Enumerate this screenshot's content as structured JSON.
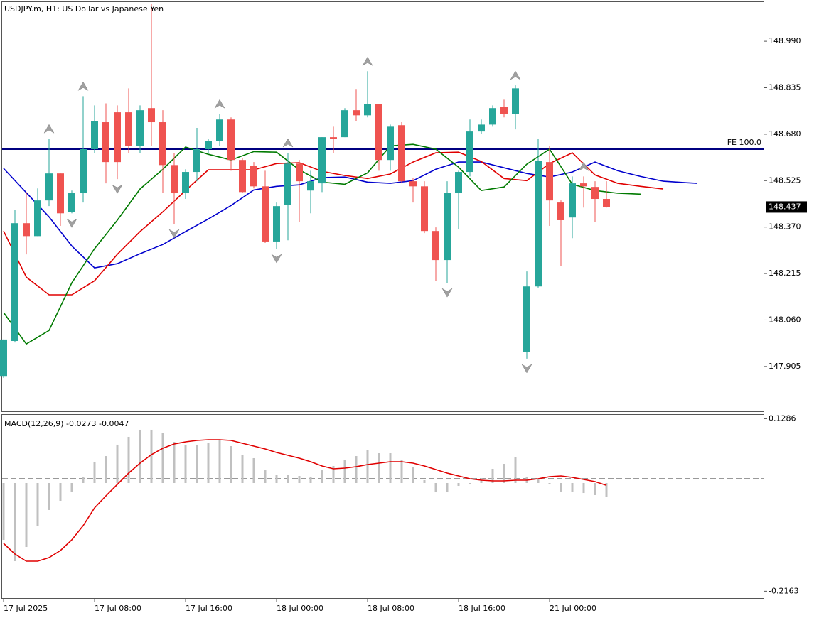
{
  "chart_data": [
    {
      "type": "candlestick",
      "title": "USDJPY.m, H1:  US Dollar vs Japanese Yen",
      "open": [
        147.871,
        147.99,
        148.383,
        148.34,
        148.459,
        148.549,
        148.421,
        148.483,
        148.63,
        148.72,
        148.753,
        148.753,
        148.641,
        148.767,
        148.72,
        148.577,
        148.483,
        148.554,
        148.63,
        148.658,
        148.729,
        148.594,
        148.575,
        148.506,
        148.322,
        148.445,
        148.582,
        148.492,
        148.516,
        148.67,
        148.67,
        148.76,
        148.743,
        148.781,
        148.594,
        148.71,
        148.523,
        148.506,
        148.357,
        148.26,
        148.483,
        148.554,
        148.689,
        148.712,
        148.772,
        148.748,
        147.954,
        148.172,
        148.587,
        148.452,
        148.402,
        148.516,
        148.504,
        148.464
      ],
      "high": [
        147.995,
        148.428,
        148.487,
        148.499,
        148.665,
        148.549,
        148.492,
        148.807,
        148.776,
        148.783,
        148.776,
        148.833,
        148.776,
        149.115,
        148.76,
        148.618,
        148.563,
        148.701,
        148.665,
        148.748,
        148.736,
        148.601,
        148.587,
        148.558,
        148.452,
        148.618,
        148.594,
        148.558,
        148.67,
        148.705,
        148.767,
        148.831,
        148.89,
        148.781,
        148.712,
        148.72,
        148.535,
        148.523,
        148.369,
        148.523,
        148.558,
        148.729,
        148.729,
        148.776,
        148.795,
        148.843,
        148.222,
        148.665,
        148.641,
        148.459,
        148.539,
        148.539,
        148.523,
        148.523
      ],
      "low": [
        147.867,
        147.985,
        148.279,
        148.34,
        148.44,
        148.374,
        148.416,
        148.452,
        148.618,
        148.516,
        148.53,
        148.618,
        148.618,
        148.641,
        148.483,
        148.381,
        148.464,
        148.523,
        148.618,
        148.641,
        148.558,
        148.483,
        148.499,
        148.317,
        148.298,
        148.326,
        148.388,
        148.416,
        148.487,
        148.618,
        148.67,
        148.724,
        148.736,
        148.558,
        148.558,
        148.516,
        148.452,
        148.35,
        148.191,
        148.184,
        148.364,
        148.539,
        148.682,
        148.705,
        148.736,
        148.696,
        147.931,
        148.168,
        148.374,
        148.239,
        148.333,
        148.435,
        148.388,
        148.435
      ],
      "close": [
        147.995,
        148.383,
        148.34,
        148.459,
        148.549,
        148.416,
        148.483,
        148.63,
        148.724,
        148.587,
        148.587,
        148.641,
        148.76,
        148.72,
        148.577,
        148.483,
        148.554,
        148.63,
        148.658,
        148.729,
        148.594,
        148.487,
        148.506,
        148.322,
        148.44,
        148.582,
        148.523,
        148.523,
        148.67,
        148.665,
        148.76,
        148.743,
        148.781,
        148.594,
        148.705,
        148.523,
        148.506,
        148.357,
        148.26,
        148.483,
        148.554,
        148.689,
        148.712,
        148.767,
        148.748,
        148.833,
        148.172,
        148.592,
        148.459,
        148.393,
        148.516,
        148.506,
        148.464,
        148.437
      ],
      "up_color": "#26a69a",
      "down_color": "#ef5350",
      "series": [
        {
          "color": "#0000cd",
          "x": [
            0,
            2,
            4,
            6,
            8,
            10,
            12,
            14,
            16,
            18,
            20,
            22,
            24,
            26,
            28,
            30,
            32,
            34,
            36,
            38,
            40,
            42,
            44,
            46,
            48,
            50,
            52,
            54,
            56,
            58,
            60,
            61
          ],
          "values": [
            148.566,
            148.485,
            148.404,
            148.307,
            148.234,
            148.248,
            148.281,
            148.312,
            148.355,
            148.397,
            148.442,
            148.494,
            148.506,
            148.511,
            148.535,
            148.537,
            148.52,
            148.516,
            148.525,
            148.563,
            148.587,
            148.587,
            148.568,
            148.549,
            148.537,
            148.554,
            148.587,
            148.558,
            148.539,
            148.523,
            148.518,
            148.516
          ]
        },
        {
          "color": "#e00000",
          "x": [
            0,
            2,
            4,
            6,
            8,
            10,
            12,
            14,
            16,
            18,
            20,
            22,
            24,
            26,
            28,
            30,
            32,
            34,
            36,
            38,
            40,
            42,
            44,
            46,
            48,
            50,
            52,
            54,
            56,
            58
          ],
          "values": [
            148.357,
            148.203,
            148.144,
            148.144,
            148.191,
            148.279,
            148.355,
            148.421,
            148.492,
            148.561,
            148.561,
            148.561,
            148.582,
            148.585,
            148.556,
            148.542,
            148.532,
            148.547,
            148.587,
            148.618,
            148.62,
            148.589,
            148.532,
            148.525,
            148.582,
            148.618,
            148.544,
            148.516,
            148.506,
            148.497
          ]
        },
        {
          "color": "#007a00",
          "x": [
            0,
            2,
            4,
            6,
            8,
            10,
            12,
            14,
            16,
            18,
            20,
            22,
            24,
            26,
            28,
            30,
            32,
            34,
            36,
            38,
            40,
            42,
            44,
            46,
            48,
            50,
            52,
            54,
            56
          ],
          "values": [
            148.085,
            147.98,
            148.025,
            148.184,
            148.298,
            148.393,
            148.497,
            148.563,
            148.637,
            148.613,
            148.594,
            148.622,
            148.62,
            148.561,
            148.52,
            148.513,
            148.551,
            148.641,
            148.646,
            148.63,
            148.57,
            148.492,
            148.504,
            148.58,
            148.63,
            148.513,
            148.492,
            148.483,
            148.48
          ]
        }
      ],
      "fractals_up": [
        4,
        7,
        19,
        25,
        32,
        45,
        51
      ],
      "fractals_down": [
        6,
        10,
        15,
        24,
        39,
        46
      ],
      "fractal_color": "#a0a0a0",
      "hline": {
        "value": 148.63,
        "label": "FE 100.0",
        "color": "#000080"
      },
      "xlim": [
        -0.1875,
        66.875
      ],
      "ylim": [
        147.753,
        149.123
      ],
      "yticks": [
        {
          "value": 148.99,
          "label": "148.990"
        },
        148.835,
        {
          "value": 148.68,
          "label": "148.680"
        },
        148.525,
        {
          "value": 148.37,
          "label": "148.370"
        },
        148.215,
        {
          "value": 148.06,
          "label": "148.060"
        },
        147.905
      ]
    },
    {
      "type": "macd",
      "name": "MACD(12,26,9)",
      "histogram": [
        -0.1136,
        -0.1561,
        -0.1278,
        -0.0852,
        -0.0539,
        -0.0355,
        -0.017,
        0.0114,
        0.0426,
        0.0539,
        0.0767,
        0.0923,
        0.1065,
        0.1065,
        0.0994,
        0.0823,
        0.0767,
        0.0767,
        0.0795,
        0.0852,
        0.0738,
        0.0568,
        0.0497,
        0.0255,
        0.017,
        0.017,
        0.0142,
        0.0128,
        0.0255,
        0.0341,
        0.0454,
        0.0539,
        0.0653,
        0.0596,
        0.0596,
        0.0454,
        0.0312,
        0.0057,
        -0.0185,
        -0.0185,
        -0.0057,
        -0.0014,
        0.0099,
        0.0284,
        0.0383,
        0.0525,
        0.0114,
        0.0085,
        -0.0028,
        -0.017,
        -0.017,
        -0.0199,
        -0.0241,
        -0.0273
      ],
      "signal": [
        -0.1207,
        -0.1419,
        -0.1561,
        -0.1561,
        -0.149,
        -0.1348,
        -0.1136,
        -0.0852,
        -0.0497,
        -0.0256,
        -0.0028,
        0.0199,
        0.0397,
        0.0568,
        0.0696,
        0.0781,
        0.0823,
        0.0852,
        0.0866,
        0.0866,
        0.0852,
        0.0795,
        0.0738,
        0.0681,
        0.061,
        0.0554,
        0.0497,
        0.0426,
        0.0341,
        0.0284,
        0.0298,
        0.0326,
        0.0369,
        0.0397,
        0.0426,
        0.0426,
        0.0397,
        0.0341,
        0.027,
        0.0199,
        0.0142,
        0.0085,
        0.0057,
        0.0043,
        0.0043,
        0.0057,
        0.0057,
        0.0085,
        0.0128,
        0.0142,
        0.0114,
        0.0071,
        0.0028,
        -0.0047
      ],
      "histogram_color": "#c0c0c0",
      "signal_color": "#e00000",
      "xlim": [
        -0.1875,
        66.875
      ],
      "ylim": [
        -0.2314,
        0.1377
      ],
      "yticks": [
        0.1286,
        -0.2163
      ],
      "xticks": [
        {
          "value": 0,
          "label": "17 Jul 2025"
        },
        {
          "value": 8,
          "label": "17 Jul 08:00"
        },
        {
          "value": 16,
          "label": "17 Jul 16:00"
        },
        {
          "value": 24,
          "label": "18 Jul 00:00"
        },
        {
          "value": 32,
          "label": "18 Jul 08:00"
        },
        {
          "value": 40,
          "label": "18 Jul 16:00"
        },
        {
          "value": 48,
          "label": "21 Jul 00:00"
        }
      ]
    }
  ]
}
